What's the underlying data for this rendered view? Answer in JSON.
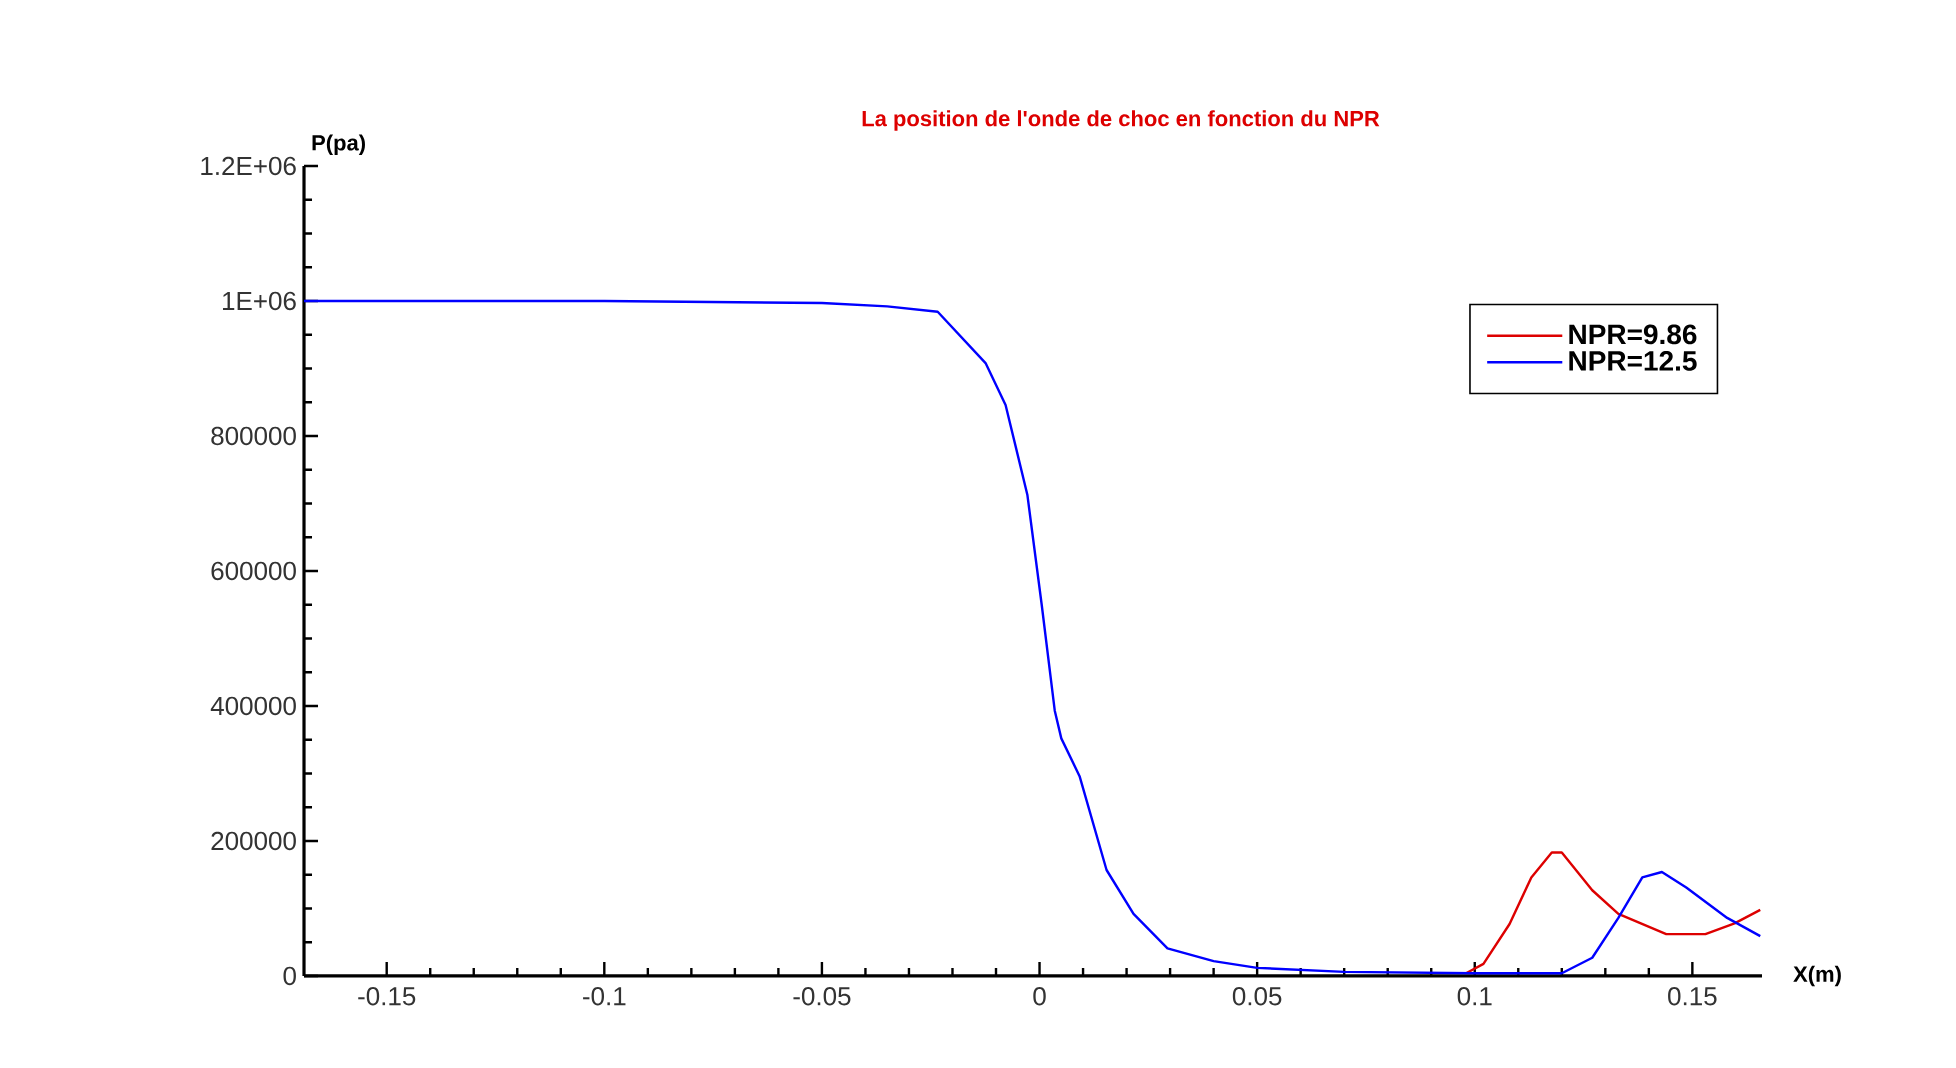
{
  "chart_data": {
    "type": "line",
    "title": "La position de l'onde de choc en fonction du NPR",
    "xlabel": "X(m)",
    "ylabel": "P(pa)",
    "xlim": [
      -0.169,
      0.166
    ],
    "ylim": [
      0,
      1200000
    ],
    "xticks": [
      -0.15,
      -0.1,
      -0.05,
      0,
      0.05,
      0.1,
      0.15
    ],
    "yticks": [
      0,
      200000,
      400000,
      600000,
      800000,
      {
        "value": 1000000,
        "label": "1E+06"
      },
      {
        "value": 1200000,
        "label": "1.2E+06"
      }
    ],
    "grid": false,
    "legend": "top right",
    "marker": "none",
    "line_style": "solid",
    "series": [
      {
        "name": "NPR=9.86",
        "color": "#dd0000",
        "x": [
          0.098,
          0.102,
          0.108,
          0.113,
          0.1177,
          0.12,
          0.127,
          0.133,
          0.144,
          0.153,
          0.1597,
          0.1656
        ],
        "values": [
          4000,
          18000,
          77000,
          146000,
          183000,
          183000,
          127000,
          92000,
          62000,
          62000,
          78000,
          98000
        ]
      },
      {
        "name": "NPR=12.5",
        "color": "#0000ff",
        "x": [
          -0.169,
          -0.1,
          -0.05,
          -0.035,
          -0.0234,
          -0.0124,
          -0.0078,
          -0.0028,
          0.0005,
          0.0035,
          0.005,
          0.0092,
          0.0154,
          0.0216,
          0.0294,
          0.04,
          0.05,
          0.07,
          0.1,
          0.12,
          0.127,
          0.133,
          0.1385,
          0.143,
          0.1486,
          0.158,
          0.1656
        ],
        "values": [
          1000000,
          1000000,
          997000,
          992000,
          984000,
          908000,
          846000,
          713000,
          550000,
          393000,
          352000,
          296000,
          157000,
          92000,
          41000,
          22000,
          12000,
          6000,
          4000,
          4000,
          27000,
          86000,
          146000,
          154000,
          131000,
          86000,
          59000
        ]
      }
    ]
  }
}
